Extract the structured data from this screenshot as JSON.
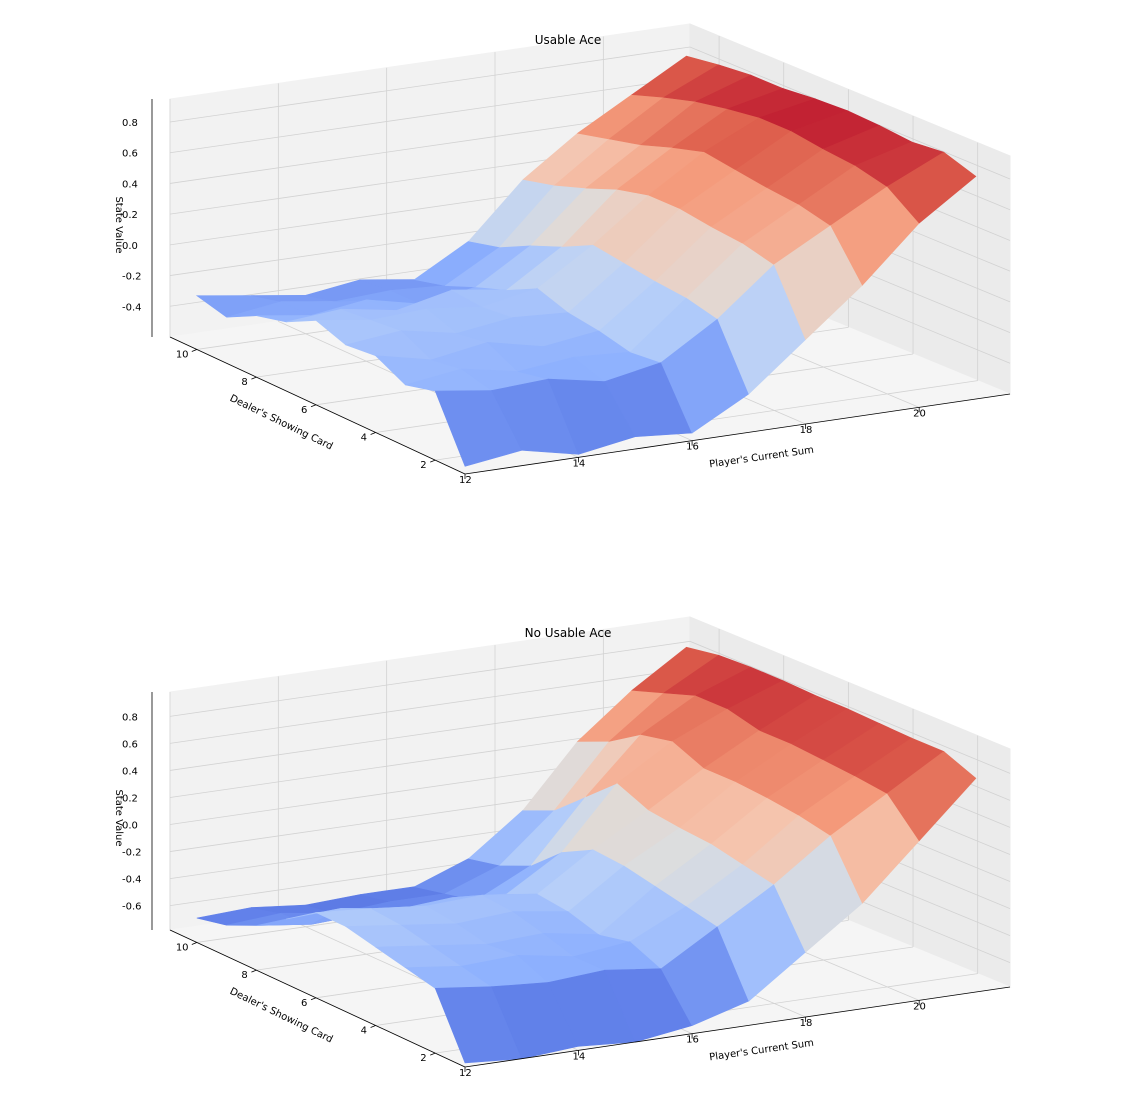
{
  "chart_data": [
    {
      "type": "surface",
      "title": "Usable Ace",
      "xlabel": "Player's Current Sum",
      "ylabel": "Dealer's Showing Card",
      "zlabel": "State Value",
      "x": [
        12,
        13,
        14,
        15,
        16,
        17,
        18,
        19,
        20,
        21
      ],
      "y": [
        1,
        2,
        3,
        4,
        5,
        6,
        7,
        8,
        9,
        10
      ],
      "xticks": [
        "12",
        "14",
        "16",
        "18",
        "20"
      ],
      "yticks": [
        "2",
        "4",
        "6",
        "8",
        "10"
      ],
      "zticks": [
        "-0.4",
        "-0.2",
        "0.0",
        "0.2",
        "0.4",
        "0.6",
        "0.8"
      ],
      "zlim": [
        -0.6,
        0.95
      ],
      "colormap": "coolwarm",
      "z": [
        [
          -0.55,
          -0.5,
          -0.58,
          -0.52,
          -0.55,
          -0.35,
          -0.05,
          0.25,
          0.6,
          0.85
        ],
        [
          -0.15,
          -0.2,
          -0.18,
          -0.25,
          -0.18,
          0.05,
          0.35,
          0.55,
          0.75,
          0.92
        ],
        [
          -0.2,
          -0.15,
          -0.22,
          -0.18,
          -0.2,
          0.1,
          0.4,
          0.6,
          0.8,
          0.9
        ],
        [
          -0.1,
          -0.18,
          -0.12,
          -0.2,
          -0.15,
          0.12,
          0.42,
          0.62,
          0.82,
          0.92
        ],
        [
          -0.12,
          -0.08,
          -0.15,
          -0.1,
          -0.12,
          0.15,
          0.45,
          0.65,
          0.85,
          0.93
        ],
        [
          -0.05,
          -0.1,
          -0.08,
          -0.12,
          -0.05,
          0.18,
          0.45,
          0.68,
          0.85,
          0.92
        ],
        [
          -0.15,
          -0.12,
          -0.18,
          -0.1,
          -0.15,
          0.08,
          0.4,
          0.62,
          0.82,
          0.9
        ],
        [
          -0.2,
          -0.25,
          -0.2,
          -0.28,
          -0.22,
          0.0,
          0.32,
          0.55,
          0.78,
          0.9
        ],
        [
          -0.3,
          -0.25,
          -0.3,
          -0.28,
          -0.3,
          -0.1,
          0.25,
          0.5,
          0.72,
          0.88
        ],
        [
          -0.25,
          -0.3,
          -0.35,
          -0.3,
          -0.35,
          -0.15,
          0.2,
          0.45,
          0.65,
          0.85
        ]
      ]
    },
    {
      "type": "surface",
      "title": "No Usable Ace",
      "xlabel": "Player's Current Sum",
      "ylabel": "Dealer's Showing Card",
      "zlabel": "State Value",
      "x": [
        12,
        13,
        14,
        15,
        16,
        17,
        18,
        19,
        20,
        21
      ],
      "y": [
        1,
        2,
        3,
        4,
        5,
        6,
        7,
        8,
        9,
        10
      ],
      "xticks": [
        "12",
        "14",
        "16",
        "18",
        "20"
      ],
      "yticks": [
        "2",
        "4",
        "6",
        "8",
        "10"
      ],
      "zticks": [
        "-0.6",
        "-0.4",
        "-0.2",
        "0.0",
        "0.2",
        "0.4",
        "0.6",
        "0.8"
      ],
      "zlim": [
        -0.78,
        0.98
      ],
      "colormap": "coolwarm",
      "z": [
        [
          -0.75,
          -0.78,
          -0.75,
          -0.78,
          -0.72,
          -0.6,
          -0.3,
          0.0,
          0.4,
          0.8
        ],
        [
          -0.3,
          -0.35,
          -0.38,
          -0.35,
          -0.4,
          -0.15,
          0.1,
          0.4,
          0.65,
          0.9
        ],
        [
          -0.25,
          -0.3,
          -0.28,
          -0.35,
          -0.3,
          -0.1,
          0.15,
          0.45,
          0.68,
          0.9
        ],
        [
          -0.2,
          -0.25,
          -0.3,
          -0.28,
          -0.35,
          -0.05,
          0.2,
          0.48,
          0.7,
          0.91
        ],
        [
          -0.15,
          -0.2,
          -0.25,
          -0.22,
          -0.28,
          0.0,
          0.22,
          0.5,
          0.72,
          0.92
        ],
        [
          -0.15,
          -0.18,
          -0.22,
          -0.2,
          -0.25,
          0.02,
          0.25,
          0.5,
          0.72,
          0.92
        ],
        [
          -0.3,
          -0.28,
          -0.35,
          -0.32,
          -0.35,
          -0.1,
          0.35,
          0.6,
          0.78,
          0.93
        ],
        [
          -0.45,
          -0.5,
          -0.48,
          -0.52,
          -0.5,
          -0.3,
          0.15,
          0.55,
          0.78,
          0.93
        ],
        [
          -0.55,
          -0.52,
          -0.58,
          -0.55,
          -0.55,
          -0.4,
          -0.05,
          0.4,
          0.7,
          0.92
        ],
        [
          -0.6,
          -0.58,
          -0.62,
          -0.6,
          -0.6,
          -0.45,
          -0.15,
          0.3,
          0.62,
          0.88
        ]
      ]
    }
  ]
}
